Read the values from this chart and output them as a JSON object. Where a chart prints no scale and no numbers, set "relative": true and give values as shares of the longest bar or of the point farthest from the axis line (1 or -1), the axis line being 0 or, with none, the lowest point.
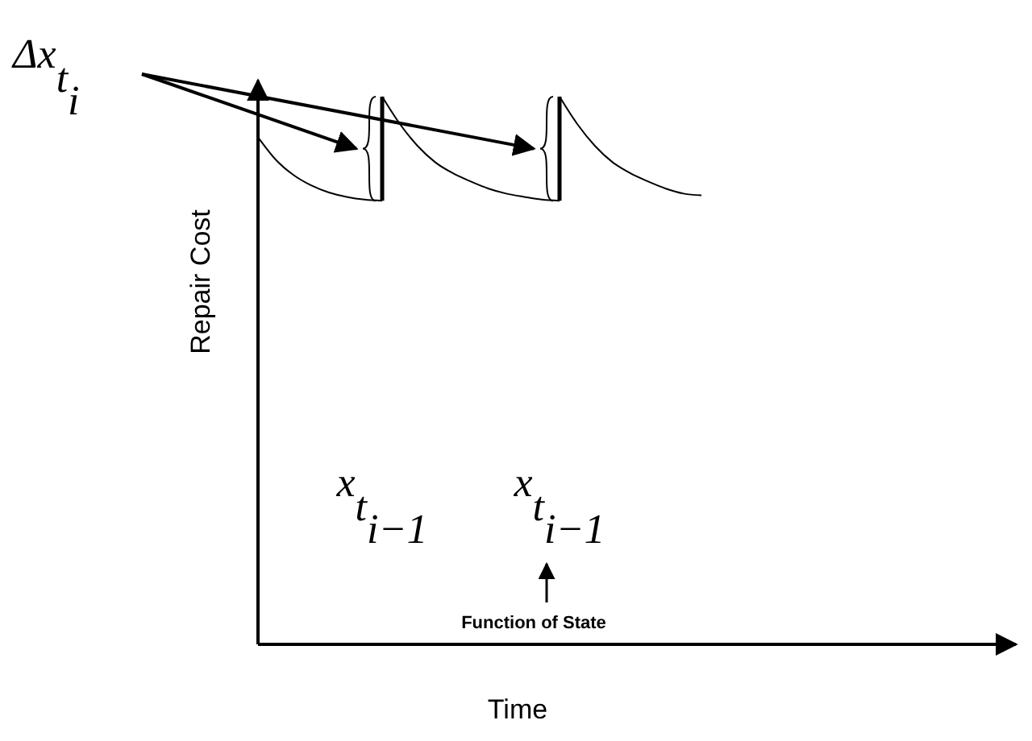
{
  "chart_data": {
    "type": "line",
    "relative": true,
    "xlabel": "Time",
    "ylabel": "Repair Cost",
    "marker": "none",
    "line_style": "solid",
    "categories": [
      null,
      null,
      null,
      null,
      null,
      null,
      null,
      null,
      null,
      null,
      null,
      null,
      null,
      null,
      null,
      null,
      null,
      null,
      null,
      null,
      null,
      null,
      null,
      null,
      null,
      null,
      null,
      null,
      null,
      null,
      null,
      null,
      null,
      null,
      null,
      null,
      null,
      null,
      null,
      null,
      null,
      null,
      null
    ],
    "series": [
      {
        "color": "#000000",
        "values": [
          0.926,
          0.885,
          0.857,
          0.838,
          0.825,
          0.817,
          0.812,
          0.81,
          null,
          null,
          null,
          null,
          null,
          null,
          null,
          null,
          null,
          null,
          null,
          null,
          null,
          null,
          null,
          null,
          null,
          null,
          null,
          null,
          null,
          null,
          null,
          null,
          null,
          null,
          null,
          null,
          null,
          null,
          null,
          null,
          null,
          null,
          null
        ]
      },
      {
        "color": "#000000",
        "values": [
          null,
          null,
          null,
          null,
          null,
          null,
          null,
          1,
          0.95,
          0.91,
          0.88,
          0.86,
          0.845,
          0.832,
          0.823,
          0.817,
          0.812,
          0.81,
          null,
          null,
          null,
          null,
          null,
          null,
          null,
          null,
          null,
          null,
          null,
          null,
          null,
          null,
          null,
          null,
          null,
          null,
          null,
          null,
          null,
          null,
          null,
          null,
          null
        ]
      },
      {
        "color": "#000000",
        "values": [
          null,
          null,
          null,
          null,
          null,
          null,
          null,
          null,
          null,
          null,
          null,
          null,
          null,
          null,
          null,
          null,
          null,
          1,
          0.95,
          0.91,
          0.88,
          0.86,
          0.845,
          0.832,
          0.823,
          0.82,
          null,
          null,
          null,
          null,
          null,
          null,
          null,
          null,
          null,
          null,
          null,
          null,
          null,
          null,
          null,
          null,
          null
        ]
      }
    ],
    "annotations": [
      "Δx$_{t}$$_{i}$",
      "x$_{t}$$_{i−1}$",
      "x$_{t}$$_{i−1}$",
      "Function of State"
    ]
  }
}
